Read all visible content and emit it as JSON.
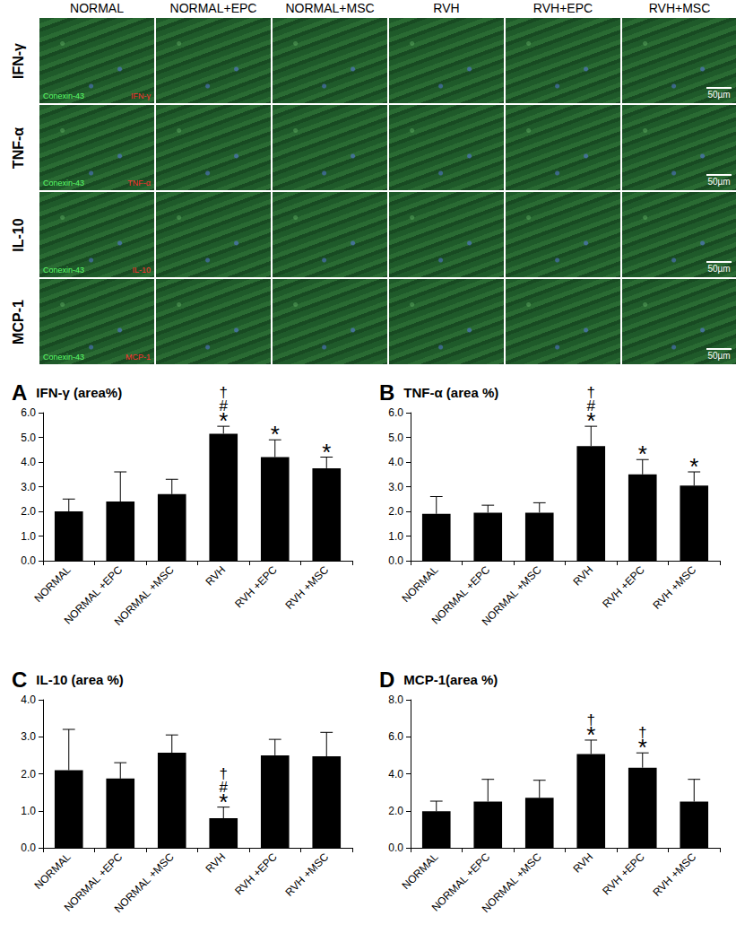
{
  "image_panel": {
    "column_headers": [
      "NORMAL",
      "NORMAL+EPC",
      "NORMAL+MSC",
      "RVH",
      "RVH+EPC",
      "RVH+MSC"
    ],
    "rows": [
      {
        "label": "IFN-γ",
        "stains": [
          "Conexin-43",
          "IFN-γ"
        ]
      },
      {
        "label": "TNF-α",
        "stains": [
          "Conexin-43",
          "TNF-α"
        ]
      },
      {
        "label": "IL-10",
        "stains": [
          "Conexin-43",
          "IL-10"
        ]
      },
      {
        "label": "MCP-1",
        "stains": [
          "Conexin-43",
          "MCP-1"
        ]
      }
    ],
    "scale_bar": "50µm"
  },
  "chart_data": [
    {
      "type": "bar",
      "panel": "A",
      "title": "IFN-γ (area%)",
      "categories": [
        "NORMAL",
        "NORMAL +EPC",
        "NORMAL +MSC",
        "RVH",
        "RVH +EPC",
        "RVH +MSC"
      ],
      "values": [
        2.0,
        2.4,
        2.7,
        5.15,
        4.2,
        3.75
      ],
      "errors": [
        0.5,
        1.2,
        0.6,
        0.3,
        0.7,
        0.45
      ],
      "significance": [
        null,
        null,
        null,
        [
          "†",
          "#",
          "*"
        ],
        [
          "*"
        ],
        [
          "*"
        ]
      ],
      "color": "#000000",
      "ylim": [
        0,
        6
      ],
      "yticks": [
        {
          "value": 0,
          "label": "0.0"
        },
        {
          "value": 1,
          "label": "1.0"
        },
        {
          "value": 2,
          "label": "2.0"
        },
        {
          "value": 3,
          "label": "3.0"
        },
        {
          "value": 4,
          "label": "4.0"
        },
        {
          "value": 5,
          "label": "5.0"
        },
        {
          "value": 6,
          "label": "6.0"
        }
      ],
      "grid": false
    },
    {
      "type": "bar",
      "panel": "B",
      "title": "TNF-α (area %)",
      "categories": [
        "NORMAL",
        "NORMAL +EPC",
        "NORMAL +MSC",
        "RVH",
        "RVH +EPC",
        "RVH +MSC"
      ],
      "values": [
        1.9,
        1.95,
        1.95,
        4.65,
        3.5,
        3.05
      ],
      "errors": [
        0.7,
        0.3,
        0.4,
        0.8,
        0.6,
        0.55
      ],
      "significance": [
        null,
        null,
        null,
        [
          "†",
          "#",
          "*"
        ],
        [
          "*"
        ],
        [
          "*"
        ]
      ],
      "color": "#000000",
      "ylim": [
        0,
        6
      ],
      "yticks": [
        {
          "value": 0,
          "label": "0.0"
        },
        {
          "value": 1,
          "label": "1.0"
        },
        {
          "value": 2,
          "label": "2.0"
        },
        {
          "value": 3,
          "label": "3.0"
        },
        {
          "value": 4,
          "label": "4.0"
        },
        {
          "value": 5,
          "label": "5.0"
        },
        {
          "value": 6,
          "label": "6.0"
        }
      ],
      "grid": false
    },
    {
      "type": "bar",
      "panel": "C",
      "title": "IL-10 (area %)",
      "categories": [
        "NORMAL",
        "NORMAL +EPC",
        "NORMAL +MSC",
        "RVH",
        "RVH +EPC",
        "RVH +MSC"
      ],
      "values": [
        2.1,
        1.87,
        2.57,
        0.8,
        2.5,
        2.47
      ],
      "errors": [
        1.1,
        0.43,
        0.48,
        0.3,
        0.43,
        0.65
      ],
      "significance": [
        null,
        null,
        null,
        [
          "†",
          "#",
          "*"
        ],
        null,
        null
      ],
      "color": "#000000",
      "ylim": [
        0,
        4
      ],
      "yticks": [
        {
          "value": 0,
          "label": "0.0"
        },
        {
          "value": 1,
          "label": "1.0"
        },
        {
          "value": 2,
          "label": "2.0"
        },
        {
          "value": 3,
          "label": "3.0"
        },
        {
          "value": 4,
          "label": "4.0"
        }
      ],
      "grid": false
    },
    {
      "type": "bar",
      "panel": "D",
      "title": "MCP-1(area %)",
      "categories": [
        "NORMAL",
        "NORMAL +EPC",
        "NORMAL +MSC",
        "RVH",
        "RVH +EPC",
        "RVH +MSC"
      ],
      "values": [
        1.97,
        2.5,
        2.7,
        5.07,
        4.33,
        2.5
      ],
      "errors": [
        0.55,
        1.2,
        0.95,
        0.75,
        0.8,
        1.2
      ],
      "significance": [
        null,
        null,
        null,
        [
          "†",
          "*"
        ],
        [
          "†",
          "*"
        ],
        null
      ],
      "color": "#000000",
      "ylim": [
        0,
        8
      ],
      "yticks": [
        {
          "value": 0,
          "label": "0.0"
        },
        {
          "value": 2,
          "label": "2.0"
        },
        {
          "value": 4,
          "label": "4.0"
        },
        {
          "value": 6,
          "label": "6.0"
        },
        {
          "value": 8,
          "label": "8.0"
        }
      ],
      "grid": false
    }
  ]
}
